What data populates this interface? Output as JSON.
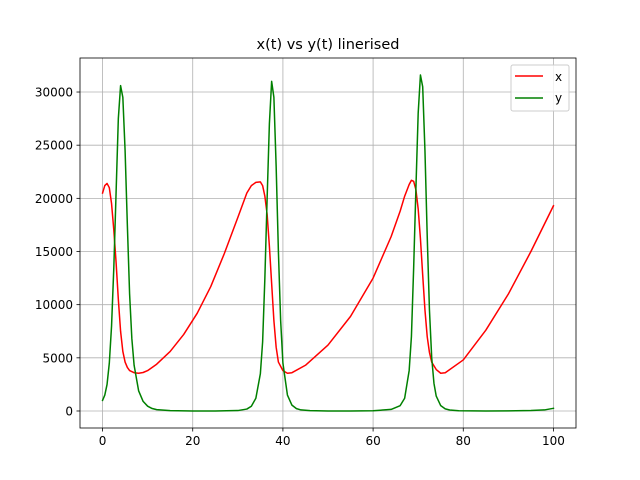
{
  "chart_data": {
    "type": "line",
    "title": "x(t) vs y(t) linerised",
    "xlabel": "",
    "ylabel": "",
    "xlim": [
      -5,
      105
    ],
    "ylim": [
      -1600,
      33200
    ],
    "x_ticks": [
      0,
      20,
      40,
      60,
      80,
      100
    ],
    "y_ticks": [
      0,
      5000,
      10000,
      15000,
      20000,
      25000,
      30000
    ],
    "grid": true,
    "legend_position": "top-right",
    "series": [
      {
        "name": "x",
        "color": "#ff0000",
        "x": [
          0,
          0.5,
          1,
          1.5,
          2,
          2.5,
          3,
          3.5,
          4,
          4.5,
          5,
          5.5,
          6,
          7,
          8,
          9,
          10,
          12,
          15,
          18,
          21,
          24,
          27,
          30,
          32,
          33,
          34,
          35,
          35.5,
          36,
          36.5,
          37,
          37.5,
          38,
          38.5,
          39,
          40,
          41,
          42,
          45,
          50,
          55,
          60,
          64,
          66,
          67,
          68,
          68.5,
          69,
          69.5,
          70,
          70.5,
          71,
          71.5,
          72,
          72.5,
          73,
          74,
          75,
          76,
          80,
          85,
          90,
          95,
          100
        ],
        "y": [
          20500,
          21200,
          21400,
          21000,
          19500,
          17000,
          14000,
          10500,
          7500,
          5600,
          4600,
          4100,
          3800,
          3600,
          3550,
          3620,
          3800,
          4400,
          5600,
          7200,
          9200,
          11700,
          14800,
          18200,
          20500,
          21200,
          21500,
          21550,
          21200,
          20200,
          18500,
          15500,
          12000,
          8500,
          6000,
          4600,
          3800,
          3550,
          3600,
          4300,
          6200,
          8900,
          12500,
          16400,
          18800,
          20200,
          21300,
          21700,
          21600,
          20800,
          19000,
          16200,
          12800,
          9500,
          7000,
          5500,
          4600,
          3900,
          3550,
          3600,
          4800,
          7600,
          11000,
          15000,
          19300
        ]
      },
      {
        "name": "y",
        "color": "#008000",
        "x": [
          0,
          0.5,
          1,
          1.5,
          2,
          2.5,
          3,
          3.5,
          4,
          4.5,
          5,
          5.5,
          6,
          6.5,
          7,
          8,
          9,
          10,
          11,
          12,
          15,
          20,
          25,
          30,
          32,
          33,
          34,
          35,
          35.5,
          36,
          36.5,
          37,
          37.5,
          38,
          38.5,
          39,
          39.5,
          40,
          41,
          42,
          43,
          44,
          46,
          50,
          55,
          60,
          64,
          66,
          67,
          68,
          68.5,
          69,
          69.5,
          70,
          70.5,
          71,
          71.5,
          72,
          72.5,
          73,
          73.5,
          74,
          75,
          76,
          77,
          79,
          85,
          90,
          95,
          98,
          100
        ],
        "y": [
          1000,
          1500,
          2500,
          4500,
          8000,
          13500,
          20500,
          27500,
          30600,
          29500,
          24500,
          17500,
          11000,
          6800,
          4300,
          1900,
          900,
          450,
          230,
          130,
          30,
          5,
          5,
          40,
          180,
          450,
          1200,
          3500,
          6500,
          12500,
          20000,
          27000,
          31000,
          29500,
          23000,
          15000,
          8500,
          4500,
          1500,
          550,
          220,
          100,
          30,
          5,
          5,
          20,
          150,
          500,
          1200,
          3800,
          7000,
          13500,
          21000,
          28000,
          31600,
          30500,
          24500,
          16500,
          9500,
          5000,
          2600,
          1400,
          500,
          200,
          90,
          25,
          5,
          10,
          40,
          100,
          250
        ]
      }
    ]
  }
}
